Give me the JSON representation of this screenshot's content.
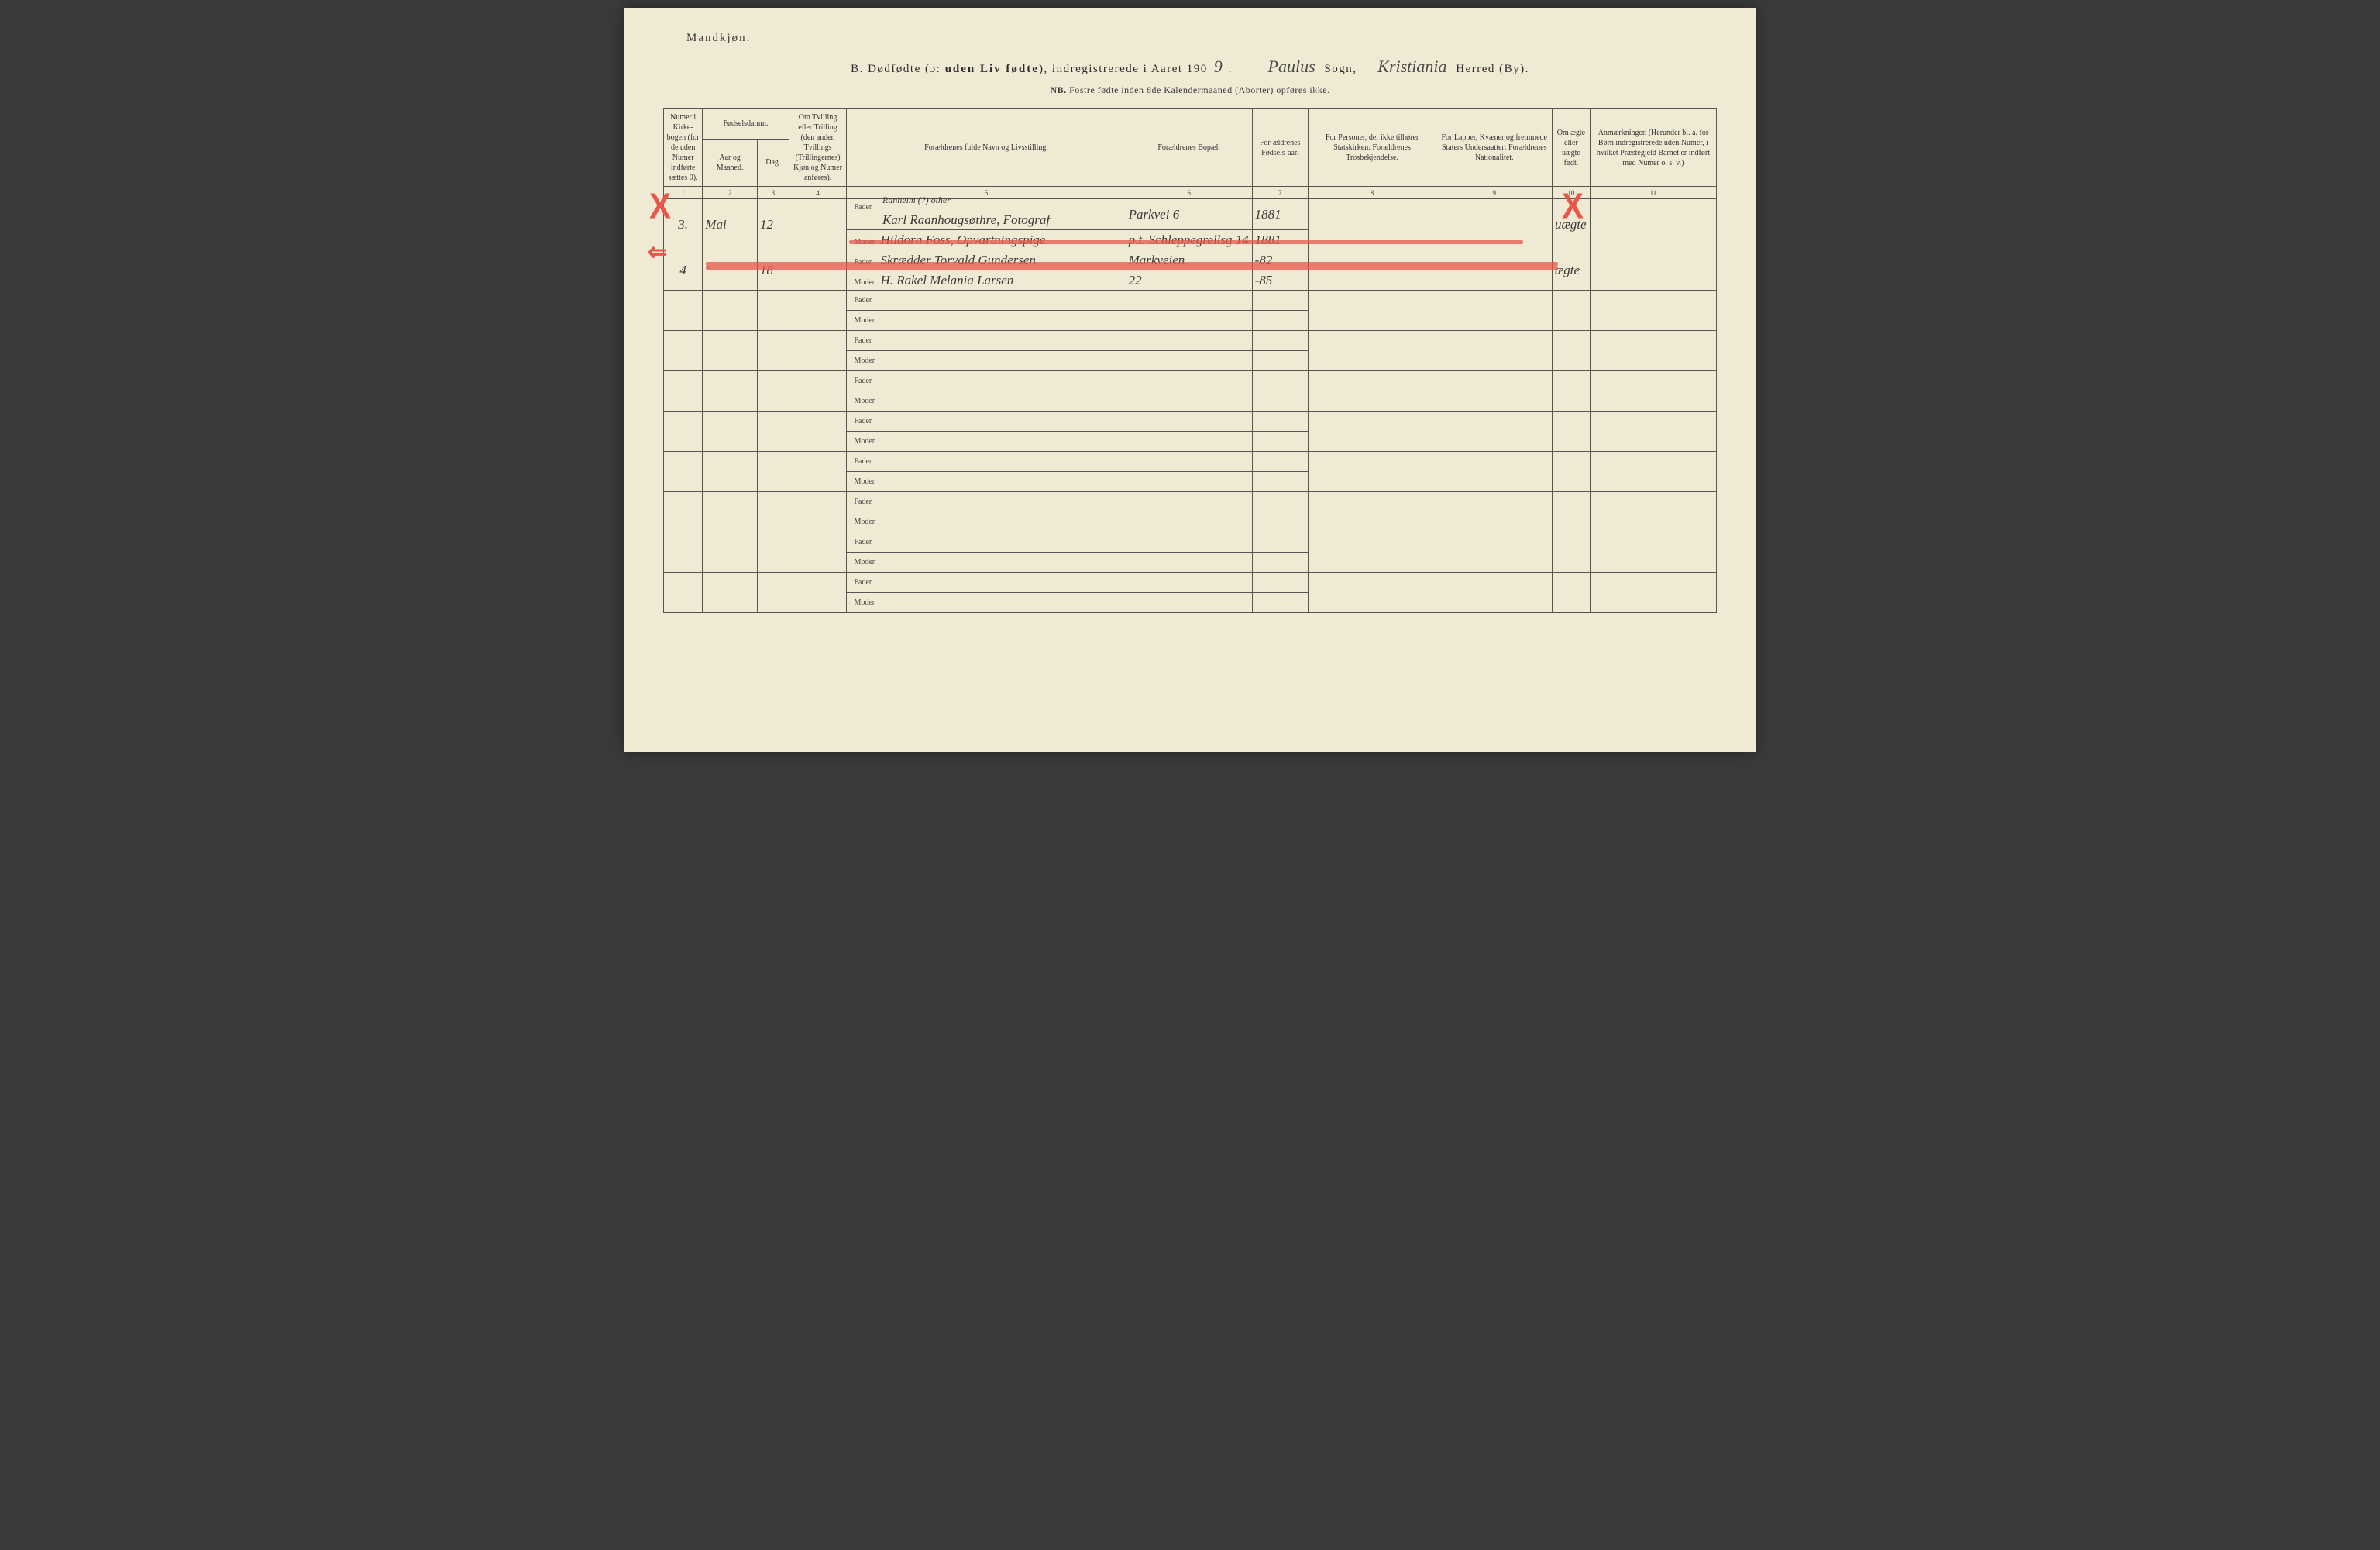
{
  "header": {
    "gender_label": "Mandkjøn.",
    "title_prefix": "B.   Dødfødte (ɔ: ",
    "title_bold": "uden Liv fødte",
    "title_mid": "), indregistrerede i Aaret 190",
    "year_digit": "9",
    "sogn_hand": "Paulus",
    "sogn_label": "Sogn,",
    "herred_hand": "Kristiania",
    "herred_label": "Herred (By).",
    "subtitle_nb": "NB.",
    "subtitle_rest": "Fostre fødte inden 8de Kalendermaaned (Aborter) opføres ikke."
  },
  "columns": {
    "c1": "Numer i Kirke-bogen (for de uden Numer indførte sættes 0).",
    "c2_top": "Fødselsdatum.",
    "c2a": "Aar og Maaned.",
    "c2b": "Dag.",
    "c3": "Om Tvilling eller Trilling (den anden Tvillings (Trillingernes) Kjøn og Numer anføres).",
    "c4": "Forældrenes fulde Navn og Livsstilling.",
    "c5": "Forældrenes Bopæl.",
    "c6": "For-ældrenes Fødsels-aar.",
    "c7": "For Personer, der ikke tilhører Statskirken: Forældrenes Trosbekjendelse.",
    "c8": "For Lapper, Kvæner og fremmede Staters Undersaatter: Forældrenes Nationalitet.",
    "c9": "Om ægte eller uægte født.",
    "c10": "Anmærkninger. (Herunder bl. a. for Børn indregistrerede uden Numer, i hvilket Præstegjeld Barnet er indført med Numer o. s. v.)"
  },
  "colnums": [
    "1",
    "2",
    "3",
    "4",
    "5",
    "6",
    "7",
    "8",
    "9",
    "10",
    "11"
  ],
  "role": {
    "fader": "Fader",
    "moder": "Moder"
  },
  "entries": [
    {
      "num": "3.",
      "month": "Mai",
      "day": "12",
      "fader_super": "Ranheim (?) other",
      "fader": "Karl Raanhougsøthre, Fotograf",
      "moder": "Hildora Foss, Opvartningspige",
      "fader_bopael": "Parkvei 6",
      "moder_bopael": "p.t. Schleppegrellsg 14",
      "fader_aar": "1881",
      "moder_aar": "1881",
      "aegte": "uægte"
    },
    {
      "num": "4",
      "month": "\"",
      "day": "18",
      "fader": "Skrædder Torvald Gundersen",
      "moder": "H. Rakel Melania Larsen",
      "fader_bopael": "Markveien",
      "moder_bopael": "22",
      "fader_aar": "-82",
      "moder_aar": "-85",
      "aegte": "ægte"
    }
  ],
  "layout": {
    "col_widths_pct": [
      3.7,
      5.2,
      3.0,
      5.5,
      26.5,
      12.0,
      5.3,
      12.2,
      11.0,
      3.6,
      12.0
    ]
  },
  "colors": {
    "paper": "#f0e9d4",
    "ink": "#3a3a3a",
    "rule": "#555555",
    "red": "#e8564b"
  }
}
